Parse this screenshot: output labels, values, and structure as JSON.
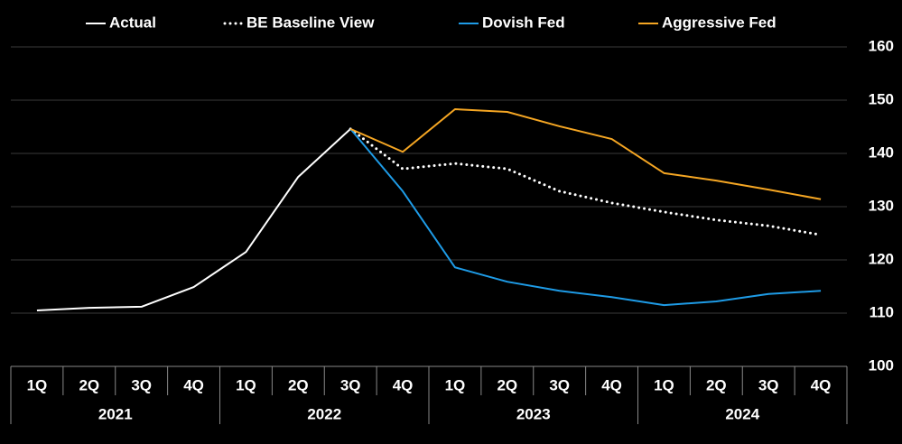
{
  "chart_data": {
    "type": "line",
    "categories": [
      "1Q",
      "2Q",
      "3Q",
      "4Q",
      "1Q",
      "2Q",
      "3Q",
      "4Q",
      "1Q",
      "2Q",
      "3Q",
      "4Q",
      "1Q",
      "2Q",
      "3Q",
      "4Q"
    ],
    "category_groups": [
      "2021",
      "2022",
      "2023",
      "2024"
    ],
    "series": [
      {
        "name": "Actual",
        "color": "#ffffff",
        "style": "solid",
        "values": [
          110.5,
          111,
          111.2,
          114.9,
          121.5,
          135.6,
          144.6,
          null,
          null,
          null,
          null,
          null,
          null,
          null,
          null,
          null
        ]
      },
      {
        "name": "BE Baseline View",
        "color": "#ffffff",
        "style": "dotted",
        "values": [
          null,
          null,
          null,
          null,
          null,
          null,
          144.6,
          137.1,
          138.1,
          137.1,
          132.9,
          130.7,
          129,
          127.5,
          126.4,
          124.7
        ]
      },
      {
        "name": "Dovish Fed",
        "color": "#1e9be6",
        "style": "solid",
        "values": [
          null,
          null,
          null,
          null,
          null,
          null,
          144.6,
          132.9,
          118.6,
          115.9,
          114.2,
          113,
          111.5,
          112.2,
          113.6,
          114.2
        ]
      },
      {
        "name": "Aggressive Fed",
        "color": "#f5a623",
        "style": "solid",
        "values": [
          null,
          null,
          null,
          null,
          null,
          null,
          144.6,
          140.3,
          148.3,
          147.8,
          145.1,
          142.7,
          136.3,
          134.9,
          133.2,
          131.4
        ]
      }
    ],
    "ylim": [
      100,
      160
    ],
    "yticks": [
      100,
      110,
      120,
      130,
      140,
      150,
      160
    ],
    "grid": true,
    "yaxis_position": "right",
    "legend": "top"
  }
}
